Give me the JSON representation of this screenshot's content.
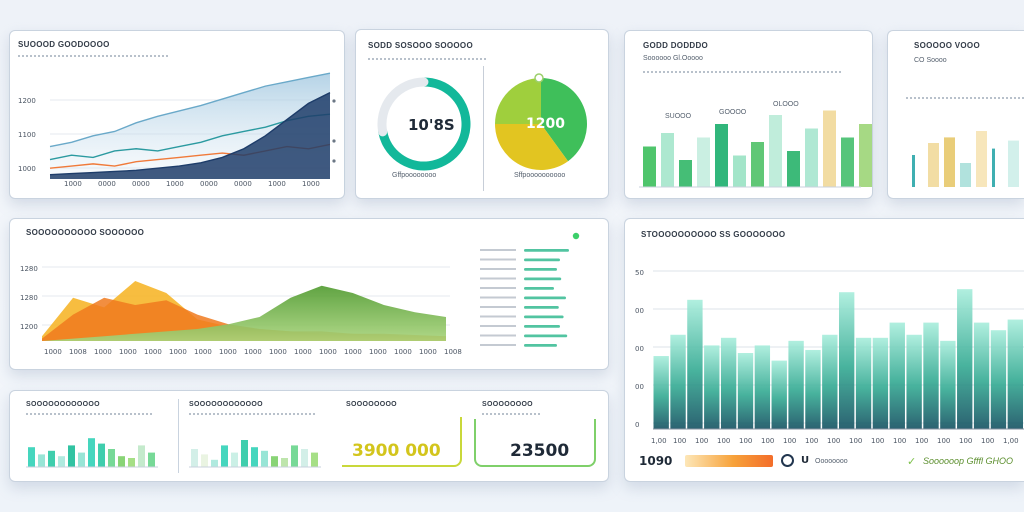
{
  "panels": {
    "p1": {
      "title": "SUOOOD GOODOOOO"
    },
    "p2": {
      "title": "SODD SOSOOO SOOOOO",
      "ring_value": "10'8S",
      "ring_label": "Gffpoooooooo",
      "pie_value": "1200",
      "pie_label": "Sffpoooooooooo"
    },
    "p3": {
      "title": "GODD DODDDO",
      "subtitle": "Soooooo Gl.Ooooo",
      "labels": [
        "SUOOO",
        "GOOOO",
        "OLOOO"
      ]
    },
    "p4": {
      "title": "SOOOOO VOOO",
      "subtitle": "CO Soooo"
    },
    "p5": {
      "title": "SOOOOOOOOOO SOOOOOO"
    },
    "p6": {
      "title": "STOOOOOOOOOO SS GOOOOOOO",
      "footer_value": "1090",
      "footer_icon_text": "U",
      "footer_small": "Oooooooo",
      "footer_brand": "Soooooop Gfffl GHOO"
    },
    "k1": {
      "title": "SOOOOOOOOOOOO"
    },
    "k2": {
      "title": "SOOOOOOOOOOOO"
    },
    "k3": {
      "title": "SOOOOOOOO",
      "value": "3900 000"
    },
    "k4": {
      "title": "SOOOOOOOO",
      "value": "23500"
    }
  },
  "colors": {
    "teal": "#12b89a",
    "green": "#3fc27a",
    "orange": "#f3902a",
    "navy": "#22406b",
    "yellow": "#e2c521"
  },
  "chart_data": [
    {
      "id": "p1",
      "type": "area",
      "y_ticks": [
        "1200",
        "1100",
        "1000"
      ],
      "x": [
        0,
        1,
        2,
        3,
        4,
        5,
        6,
        7,
        8,
        9,
        10,
        11,
        12,
        13
      ],
      "x_tick_labels": [
        "1000",
        "0000",
        "0000",
        "1000",
        "0000",
        "0000",
        "1000",
        "1000"
      ],
      "series": [
        {
          "color": "#6aa9c9",
          "values": [
            30,
            34,
            40,
            44,
            52,
            58,
            63,
            68,
            74,
            80,
            86,
            90,
            94,
            98
          ]
        },
        {
          "color": "#2b9aa0",
          "values": [
            18,
            22,
            20,
            26,
            28,
            26,
            30,
            34,
            40,
            44,
            48,
            54,
            58,
            60
          ]
        },
        {
          "color": "#f07a3a",
          "values": [
            10,
            12,
            14,
            12,
            16,
            18,
            20,
            22,
            24,
            22,
            26,
            30,
            28,
            32
          ]
        },
        {
          "color": "#1e3d6a",
          "values": [
            4,
            5,
            6,
            7,
            8,
            10,
            12,
            15,
            20,
            28,
            40,
            55,
            70,
            80
          ]
        }
      ]
    },
    {
      "id": "p2-ring",
      "type": "pie",
      "values": [
        72,
        28
      ],
      "colors": [
        "#12b89a",
        "#e5e9ee"
      ]
    },
    {
      "id": "p2-pie",
      "type": "pie",
      "values": [
        40,
        35,
        25
      ],
      "colors": [
        "#3fbf5a",
        "#e2c521",
        "#9fcf3d"
      ]
    },
    {
      "id": "p3",
      "type": "bar",
      "values": [
        45,
        60,
        30,
        55,
        70,
        35,
        50,
        80,
        40,
        65,
        85,
        55,
        70
      ],
      "colors": [
        "#40c060",
        "#a6e6cc",
        "#35b86a",
        "#c5eee0",
        "#20b070",
        "#9be3c4",
        "#52c26a",
        "#bbebd8",
        "#2db46e",
        "#a8e6cf",
        "#f1d99a",
        "#48c070",
        "#9ed67a"
      ]
    },
    {
      "id": "p4",
      "type": "bar",
      "values": [
        40,
        55,
        62,
        30,
        70,
        48,
        58
      ],
      "colors": [
        "#2aa6a8",
        "#f1d99a",
        "#e7c86a",
        "#a8dfd9",
        "#f6e3b4",
        "#2aa6a8",
        "#cdeee9"
      ]
    },
    {
      "id": "p5",
      "type": "area",
      "y_ticks": [
        "1280",
        "1280",
        "1200"
      ],
      "x_tick_labels": [
        "1000",
        "1008",
        "1000",
        "1000",
        "1000",
        "1000",
        "1000",
        "1000",
        "1000",
        "1000",
        "1000",
        "1000",
        "1000",
        "1000",
        "1000",
        "1000",
        "1008"
      ],
      "series": [
        {
          "color": "#f6b21f",
          "values": [
            4,
            36,
            28,
            50,
            40,
            18,
            12,
            10,
            8,
            6,
            6,
            5,
            4,
            4
          ]
        },
        {
          "color": "#f07a1f",
          "values": [
            2,
            22,
            36,
            30,
            34,
            22,
            14,
            10,
            8,
            8,
            6,
            6,
            5,
            4
          ]
        },
        {
          "color": "#5fa838",
          "values": [
            0,
            2,
            4,
            6,
            8,
            10,
            14,
            20,
            36,
            46,
            40,
            30,
            24,
            20
          ]
        }
      ],
      "side_bars": [
        0.75,
        0.6,
        0.55,
        0.62,
        0.5,
        0.7,
        0.58,
        0.66,
        0.6,
        0.72,
        0.55
      ]
    },
    {
      "id": "p6",
      "type": "bar",
      "y_ticks": [
        "50",
        "00",
        "00",
        "00",
        "0"
      ],
      "x_tick_labels": [
        "1,00",
        "100",
        "100",
        "100",
        "100",
        "100",
        "100",
        "100",
        "100",
        "100",
        "100",
        "100",
        "100",
        "100",
        "100",
        "100",
        "1,00"
      ],
      "values": [
        0.48,
        0.62,
        0.85,
        0.55,
        0.6,
        0.5,
        0.55,
        0.45,
        0.58,
        0.52,
        0.62,
        0.9,
        0.6,
        0.6,
        0.7,
        0.62,
        0.7,
        0.58,
        0.92,
        0.7,
        0.65,
        0.72
      ],
      "colors": [
        "#9ee9d5",
        "#8fe4d0",
        "#a7ecd9",
        "#96e6d3",
        "#88e2cd",
        "#9ee9d5",
        "#8fe4d0",
        "#a2ead7",
        "#96e6d3",
        "#88e2cd",
        "#9ee9d5",
        "#a7ecd9",
        "#8fe4d0",
        "#96e6d3",
        "#9ee9d5",
        "#88e2cd",
        "#a2ead7",
        "#96e6d3",
        "#a7ecd9",
        "#8fe4d0",
        "#9ee9d5",
        "#96e6d3"
      ]
    },
    {
      "id": "k1",
      "type": "bar",
      "values": [
        0.55,
        0.35,
        0.45,
        0.3,
        0.6,
        0.4,
        0.8,
        0.65,
        0.5,
        0.3,
        0.25,
        0.6,
        0.4
      ],
      "colors": [
        "#35d3b8",
        "#8fe3d2",
        "#2fcaa6",
        "#a9e8dc",
        "#1fbe9a",
        "#8fe3d2",
        "#35d3b8",
        "#2fcaa6",
        "#6bd68e",
        "#7fd06a",
        "#9edc7c",
        "#bfe8c8",
        "#6bd68e"
      ]
    },
    {
      "id": "k2",
      "type": "bar",
      "values": [
        0.5,
        0.35,
        0.2,
        0.6,
        0.4,
        0.75,
        0.55,
        0.45,
        0.3,
        0.25,
        0.6,
        0.5,
        0.4
      ],
      "colors": [
        "#cfeee6",
        "#e8f3df",
        "#a9e8dc",
        "#35d3b8",
        "#c7efe4",
        "#2fcaa6",
        "#35d3b8",
        "#8fe3d2",
        "#7fd06a",
        "#b9e3a5",
        "#6bd68e",
        "#cfeee6",
        "#9edc7c"
      ]
    }
  ]
}
